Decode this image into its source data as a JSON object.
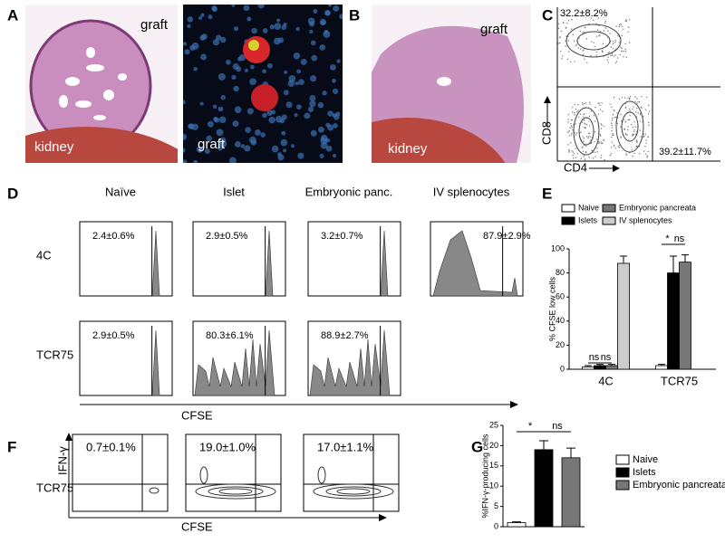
{
  "panels": {
    "A": {
      "label": "A",
      "graft_left": "graft",
      "kidney": "kidney",
      "graft_right": "graft"
    },
    "B": {
      "label": "B",
      "graft": "graft",
      "kidney": "kidney"
    },
    "C": {
      "label": "C",
      "quadrant_top_left": "32.2±8.2%",
      "quadrant_bottom_right": "39.2±11.7%",
      "x_label": "CD4",
      "y_label": "CD8"
    },
    "D": {
      "label": "D",
      "columns": [
        "Naïve",
        "Islet",
        "Embryonic panc.",
        "IV splenocytes"
      ],
      "rows": [
        {
          "name": "4C",
          "values": [
            "2.4±0.6%",
            "2.9±0.5%",
            "3.2±0.7%",
            "87.9±2.9%"
          ]
        },
        {
          "name": "TCR75",
          "values": [
            "2.9±0.5%",
            "80.3±6.1%",
            "88.9±2.7%"
          ]
        }
      ],
      "x_label": "CFSE"
    },
    "E": {
      "label": "E"
    },
    "F": {
      "label": "F",
      "row": "TCR75",
      "values": [
        "0.7±0.1%",
        "19.0±1.0%",
        "17.0±1.1%"
      ],
      "y_label": "IFN-γ",
      "x_label": "CFSE"
    },
    "G": {
      "label": "G"
    }
  },
  "chart_data": [
    {
      "type": "bar",
      "y_label": "% CFSE low cells",
      "categories": [
        "4C",
        "TCR75"
      ],
      "series": [
        {
          "name": "Naive",
          "color": "#ffffff",
          "values": [
            2,
            3
          ],
          "errors": [
            1,
            1
          ]
        },
        {
          "name": "Islets",
          "color": "#000000",
          "values": [
            3,
            80
          ],
          "errors": [
            1,
            14
          ]
        },
        {
          "name": "Embryonic pancreata",
          "color": "#777777",
          "values": [
            3,
            89
          ],
          "errors": [
            1,
            6
          ]
        },
        {
          "name": "IV splenocytes",
          "color": "#cccccc",
          "values": [
            88,
            null
          ],
          "errors": [
            6,
            null
          ]
        }
      ],
      "ylim": [
        0,
        100
      ],
      "yticks": [
        0,
        20,
        40,
        60,
        80,
        100
      ],
      "annotations": [
        "ns",
        "ns",
        "*",
        "ns"
      ]
    },
    {
      "type": "bar",
      "y_label": "%IFN-γ-producing cells",
      "categories": [
        "Naive",
        "Islets",
        "Embryonic pancreata"
      ],
      "values": [
        1,
        19,
        17
      ],
      "errors": [
        0.2,
        2.2,
        2.4
      ],
      "colors": [
        "#ffffff",
        "#000000",
        "#777777"
      ],
      "ylim": [
        0,
        25
      ],
      "yticks": [
        0,
        5,
        10,
        15,
        20,
        25
      ],
      "annotations": [
        "*",
        "ns"
      ]
    }
  ]
}
